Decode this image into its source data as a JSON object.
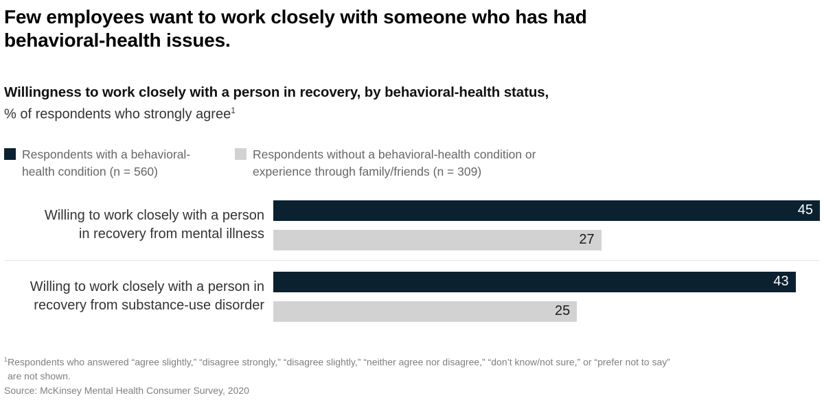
{
  "title": {
    "lines": [
      "Few employees want to work closely with someone who has had",
      "behavioral-health issues."
    ]
  },
  "subtitle": {
    "bold_line": "Willingness to work closely with a person in recovery, by behavioral-health status,",
    "unit_line": "% of respondents who strongly agree",
    "footnote_marker": "1"
  },
  "legend": {
    "items": [
      {
        "label_lines": [
          "Respondents with a behavioral-",
          "health condition (n = 560)"
        ],
        "color": "#0b2130"
      },
      {
        "label_lines": [
          "Respondents without a behavioral-health condition or",
          "experience through family/friends (n = 309)"
        ],
        "color": "#d2d2d2"
      }
    ]
  },
  "chart_data": {
    "type": "bar",
    "orientation": "horizontal",
    "title": "Willingness to work closely with a person in recovery, by behavioral-health status, % of respondents who strongly agree",
    "categories": [
      "Willing to work closely with a person in recovery from mental illness",
      "Willing to work closely with a person in recovery from substance-use disorder"
    ],
    "category_lines": [
      [
        "Willing to work closely with a person",
        "in recovery from mental illness"
      ],
      [
        "Willing to work closely with a person in",
        "recovery from substance-use disorder"
      ]
    ],
    "series": [
      {
        "name": "Respondents with a behavioral-health condition (n = 560)",
        "values": [
          45,
          43
        ],
        "color": "#0b2130",
        "value_text_color": "#ffffff"
      },
      {
        "name": "Respondents without a behavioral-health condition or experience through family/friends (n = 309)",
        "values": [
          27,
          25
        ],
        "color": "#d2d2d2",
        "value_text_color": "#1a1a1a"
      }
    ],
    "xlim": [
      0,
      45
    ],
    "value_labels": "inside-end",
    "grid": false,
    "axis_ticks_shown": false,
    "legend_position": "top-left"
  },
  "footnote": {
    "marker": "1",
    "lines": [
      "Respondents who answered “agree slightly,” “disagree strongly,” “disagree slightly,” “neither agree nor disagree,” “don’t know/not sure,” or “prefer not to say”",
      "are not shown."
    ]
  },
  "source": "Source: McKinsey Mental Health Consumer Survey, 2020"
}
